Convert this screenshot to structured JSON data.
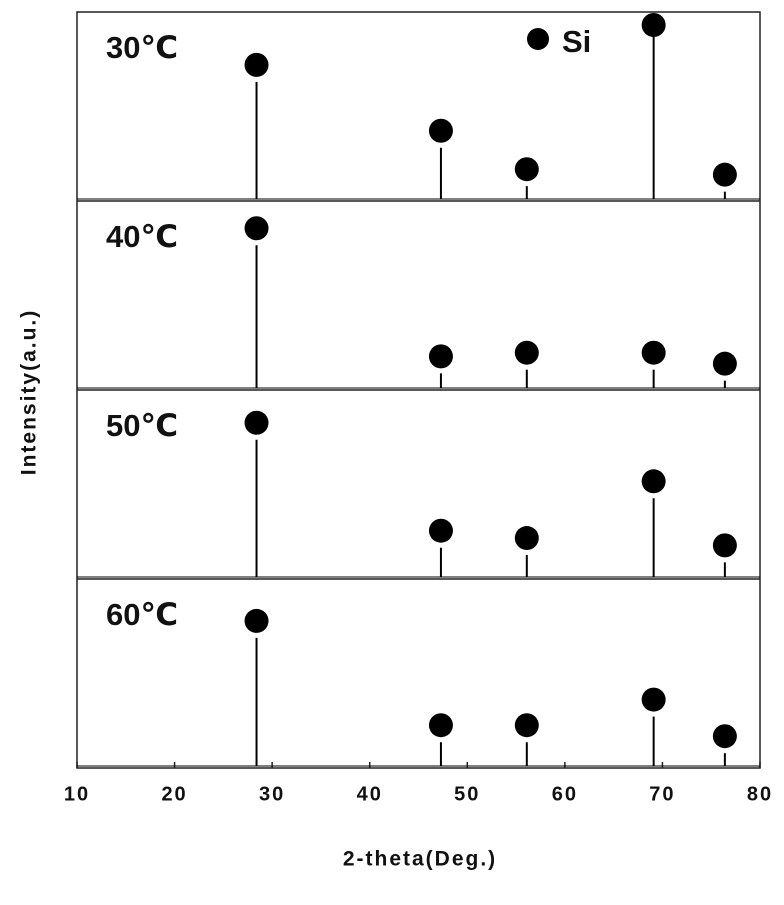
{
  "chart_data": {
    "type": "line",
    "x_label": "2-theta(Deg.)",
    "y_label": "Intensity(a.u.)",
    "xlim": [
      10,
      80
    ],
    "xticks": [
      10,
      20,
      30,
      40,
      50,
      60,
      70,
      80
    ],
    "ylim": [
      0,
      100
    ],
    "marker_label": "Si",
    "color": "#000000",
    "series": [
      {
        "name": "30℃",
        "x": [
          28.4,
          47.3,
          56.1,
          69.1,
          76.4
        ],
        "values": [
          64,
          28,
          7,
          97,
          4
        ]
      },
      {
        "name": "40℃",
        "x": [
          28.4,
          47.3,
          56.1,
          69.1,
          76.4
        ],
        "values": [
          78,
          8,
          10,
          10,
          4
        ]
      },
      {
        "name": "50℃",
        "x": [
          28.4,
          47.3,
          56.1,
          69.1,
          76.4
        ],
        "values": [
          75,
          16,
          12,
          43,
          8
        ]
      },
      {
        "name": "60℃",
        "x": [
          28.4,
          47.3,
          56.1,
          69.1,
          76.4
        ],
        "values": [
          70,
          13,
          13,
          27,
          7
        ]
      }
    ]
  }
}
